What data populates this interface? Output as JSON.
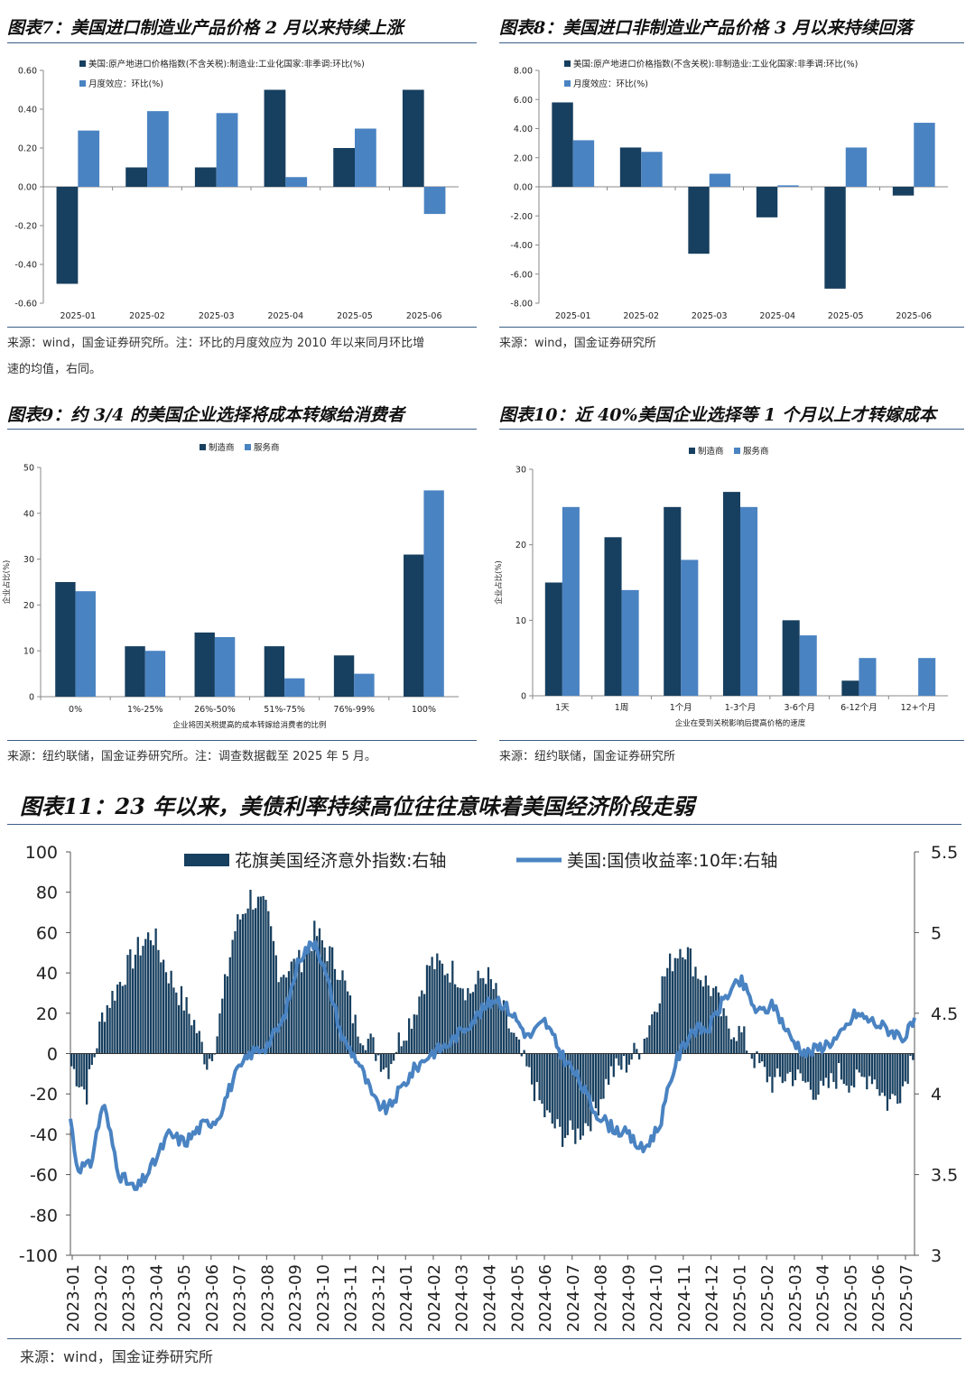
{
  "page": {
    "fig7_title": "图表7：美国进口制造业产品价格 2 月以来持续上涨",
    "fig8_title": "图表8：美国进口非制造业产品价格 3 月以来持续回落",
    "fig9_title": "图表9：约 3/4 的美国企业选择将成本转嫁给消费者",
    "fig10_title": "图表10：近 40%美国企业选择等 1 个月以上才转嫁成本",
    "fig11_title": "图表11：23 年以来，美债利率持续高位往往意味着美国经济阶段走弱",
    "src7_line1": "来源：wind，国金证券研究所。注：环比的月度效应为 2010 年以来同月环比增",
    "src7_line2": "速的均值，右同。",
    "src8": "来源：wind，国金证券研究所",
    "src9": "来源：纽约联储，国金证券研究所。注：调查数据截至 2025 年 5 月。",
    "src10": "来源：纽约联储，国金证券研究所",
    "src11": "来源：wind，国金证券研究所"
  },
  "colors": {
    "dark": "#173f5f",
    "light": "#4a83c2",
    "line": "#4a83c2"
  },
  "chart_data": [
    {
      "type": "bar",
      "categories": [
        "2025-01",
        "2025-02",
        "2025-03",
        "2025-04",
        "2025-05",
        "2025-06"
      ],
      "series": [
        {
          "name": "美国:原产地进口价格指数(不含关税):制造业:工业化国家:非季调:环比(%)",
          "values": [
            -0.5,
            0.1,
            0.1,
            0.5,
            0.2,
            0.5
          ]
        },
        {
          "name": "月度效应：环比(%)",
          "values": [
            0.29,
            0.39,
            0.38,
            0.05,
            0.3,
            -0.14
          ]
        }
      ],
      "ylim": [
        -0.6,
        0.6
      ],
      "yticks": [
        "0.60",
        "0.40",
        "0.20",
        "0.00",
        "-0.20",
        "-0.40",
        "-0.60"
      ],
      "legend": "top-left"
    },
    {
      "type": "bar",
      "categories": [
        "2025-01",
        "2025-02",
        "2025-03",
        "2025-04",
        "2025-05",
        "2025-06"
      ],
      "series": [
        {
          "name": "美国:原产地进口价格指数(不含关税):非制造业:工业化国家:非季调:环比(%)",
          "values": [
            5.8,
            2.7,
            -4.6,
            -2.1,
            -7.0,
            -0.6
          ]
        },
        {
          "name": "月度效应：环比(%)",
          "values": [
            3.2,
            2.4,
            0.9,
            0.1,
            2.7,
            4.4
          ]
        }
      ],
      "ylim": [
        -8,
        8
      ],
      "yticks": [
        "8.00",
        "6.00",
        "4.00",
        "2.00",
        "0.00",
        "-2.00",
        "-4.00",
        "-6.00",
        "-8.00"
      ],
      "legend": "top-left"
    },
    {
      "type": "bar",
      "categories": [
        "0%",
        "1%-25%",
        "26%-50%",
        "51%-75%",
        "76%-99%",
        "100%"
      ],
      "series": [
        {
          "name": "制造商",
          "values": [
            25,
            11,
            14,
            11,
            9,
            31
          ]
        },
        {
          "name": "服务商",
          "values": [
            23,
            10,
            13,
            4,
            5,
            45
          ]
        }
      ],
      "ylim": [
        0,
        50
      ],
      "yticks": [
        "50",
        "40",
        "30",
        "20",
        "10",
        "0"
      ],
      "xlabel": "企业将因关税提高的成本转嫁给消费者的比例",
      "ylabel": "企业占比(%)",
      "legend": "top-center"
    },
    {
      "type": "bar",
      "categories": [
        "1天",
        "1周",
        "1个月",
        "1-3个月",
        "3-6个月",
        "6-12个月",
        "12+个月"
      ],
      "series": [
        {
          "name": "制造商",
          "values": [
            15,
            21,
            25,
            27,
            10,
            2,
            0
          ]
        },
        {
          "name": "服务商",
          "values": [
            25,
            14,
            18,
            25,
            8,
            5,
            5
          ]
        }
      ],
      "ylim": [
        0,
        30
      ],
      "yticks": [
        "30",
        "20",
        "10",
        "0"
      ],
      "xlabel": "企业在受到关税影响后提高价格的速度",
      "ylabel": "企业占比(%)",
      "legend": "top-center"
    },
    {
      "type": "bar+line",
      "series": [
        {
          "name": "花旗美国经济意外指数:右轴",
          "kind": "bar",
          "axis": "left",
          "anchors_x": [
            2023.0,
            2023.05,
            2023.1,
            2023.2,
            2023.25,
            2023.3,
            2023.38,
            2023.42,
            2023.45,
            2023.5,
            2023.55,
            2023.6,
            2023.64,
            2023.7,
            2023.75,
            2023.83,
            2023.87,
            2023.92,
            2023.97,
            2024.0,
            2024.05,
            2024.1,
            2024.18,
            2024.22,
            2024.27,
            2024.3,
            2024.35,
            2024.4,
            2024.45,
            2024.5,
            2024.55,
            2024.6,
            2024.65,
            2024.7,
            2024.75,
            2024.82,
            2024.87,
            2024.92,
            2024.97,
            2025.0,
            2025.05,
            2025.1,
            2025.15,
            2025.2,
            2025.25,
            2025.3,
            2025.35,
            2025.4,
            2025.45,
            2025.5,
            2025.55,
            2025.58
          ],
          "anchors_y": [
            -5,
            -20,
            20,
            50,
            60,
            40,
            15,
            -5,
            10,
            60,
            78,
            70,
            40,
            45,
            60,
            40,
            15,
            5,
            -8,
            5,
            20,
            45,
            40,
            30,
            40,
            30,
            10,
            -10,
            -30,
            -40,
            -40,
            -30,
            -10,
            -5,
            5,
            40,
            55,
            40,
            30,
            15,
            10,
            -5,
            -15,
            -10,
            -15,
            -20,
            -10,
            -15,
            -10,
            -25,
            -15,
            5
          ]
        },
        {
          "name": "美国:国债收益率:10年:右轴",
          "kind": "line",
          "axis": "right",
          "anchors_x": [
            2023.0,
            2023.02,
            2023.06,
            2023.1,
            2023.15,
            2023.2,
            2023.25,
            2023.3,
            2023.35,
            2023.4,
            2023.45,
            2023.5,
            2023.55,
            2023.6,
            2023.65,
            2023.7,
            2023.75,
            2023.8,
            2023.83,
            2023.88,
            2023.93,
            2023.97,
            2024.0,
            2024.05,
            2024.1,
            2024.15,
            2024.2,
            2024.25,
            2024.3,
            2024.35,
            2024.4,
            2024.45,
            2024.5,
            2024.55,
            2024.6,
            2024.65,
            2024.7,
            2024.75,
            2024.8,
            2024.85,
            2024.9,
            2024.95,
            2025.0,
            2025.05,
            2025.1,
            2025.15,
            2025.2,
            2025.25,
            2025.3,
            2025.35,
            2025.4,
            2025.45,
            2025.5,
            2025.55,
            2025.58
          ],
          "anchors_y": [
            3.85,
            3.55,
            3.55,
            3.95,
            3.5,
            3.4,
            3.55,
            3.75,
            3.7,
            3.8,
            3.85,
            4.1,
            4.25,
            4.3,
            4.45,
            4.85,
            4.95,
            4.6,
            4.35,
            4.2,
            3.95,
            3.9,
            4.0,
            4.15,
            4.25,
            4.3,
            4.4,
            4.5,
            4.6,
            4.5,
            4.35,
            4.45,
            4.25,
            4.1,
            3.9,
            3.8,
            3.75,
            3.65,
            3.8,
            4.2,
            4.4,
            4.4,
            4.6,
            4.7,
            4.5,
            4.55,
            4.35,
            4.25,
            4.3,
            4.35,
            4.5,
            4.45,
            4.4,
            4.35,
            4.45
          ]
        }
      ],
      "x_ticks": [
        "2023-01",
        "2023-02",
        "2023-03",
        "2023-04",
        "2023-05",
        "2023-06",
        "2023-07",
        "2023-08",
        "2023-09",
        "2023-10",
        "2023-11",
        "2023-12",
        "2024-01",
        "2024-02",
        "2024-03",
        "2024-04",
        "2024-05",
        "2024-06",
        "2024-07",
        "2024-08",
        "2024-09",
        "2024-10",
        "2024-11",
        "2024-12",
        "2025-01",
        "2025-02",
        "2025-03",
        "2025-04",
        "2025-05",
        "2025-06",
        "2025-07"
      ],
      "ylim_left": [
        -100,
        100
      ],
      "yticks_left": [
        "100",
        "80",
        "60",
        "40",
        "20",
        "0",
        "-20",
        "-40",
        "-60",
        "-80",
        "-100"
      ],
      "ylim_right": [
        3,
        5.5
      ],
      "yticks_right": [
        "5.5",
        "5",
        "4.5",
        "4",
        "3.5",
        "3"
      ],
      "legend": "top-center"
    }
  ]
}
